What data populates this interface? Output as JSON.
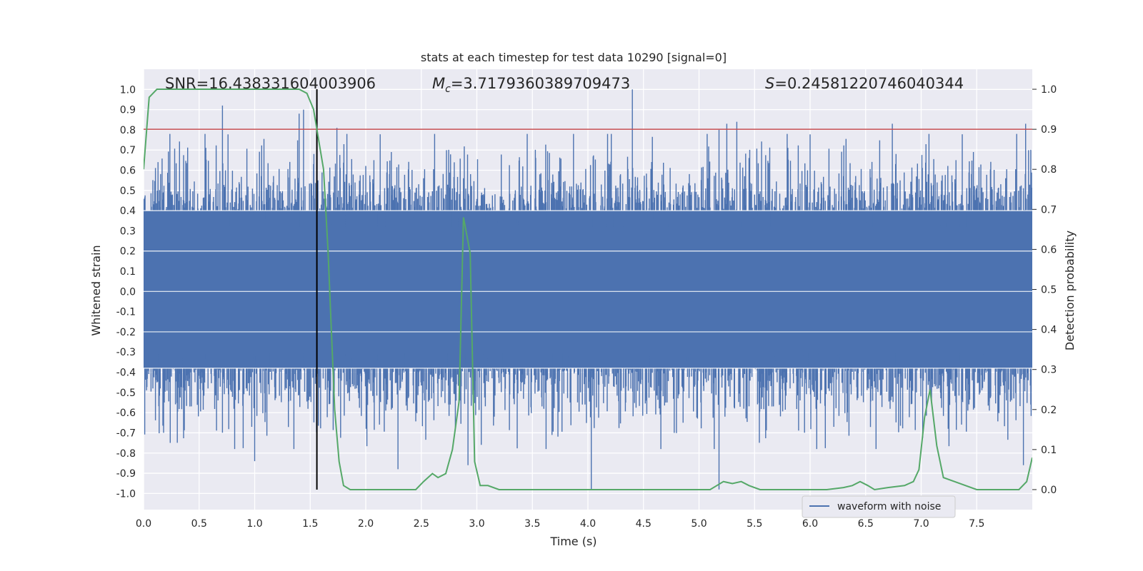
{
  "chart_data": {
    "type": "line",
    "title": "stats at each timestep for test data 10290 [signal=0]",
    "xlabel": "Time (s)",
    "ylabel": "Whitened strain",
    "ylabel_right": "Detection probability",
    "xlim": [
      0.0,
      8.0
    ],
    "ylim": [
      -1.08,
      1.1
    ],
    "ylim_right": [
      -0.05,
      1.05
    ],
    "x_ticks": [
      "0.0",
      "0.5",
      "1.0",
      "1.5",
      "2.0",
      "2.5",
      "3.0",
      "3.5",
      "4.0",
      "4.5",
      "5.0",
      "5.5",
      "6.0",
      "6.5",
      "7.0",
      "7.5"
    ],
    "y_ticks": [
      "-1.0",
      "-0.9",
      "-0.8",
      "-0.7",
      "-0.6",
      "-0.5",
      "-0.4",
      "-0.3",
      "-0.2",
      "-0.1",
      "0.0",
      "0.1",
      "0.2",
      "0.3",
      "0.4",
      "0.5",
      "0.6",
      "0.7",
      "0.8",
      "0.9",
      "1.0"
    ],
    "y_ticks_right": [
      "0.0",
      "0.1",
      "0.2",
      "0.3",
      "0.4",
      "0.5",
      "0.6",
      "0.7",
      "0.8",
      "0.9",
      "1.0"
    ],
    "annotations": {
      "snr": "SNR=16.438331604003906",
      "mc_symbol": "M",
      "mc_sub": "c",
      "mc_value": "=3.7179360389709473",
      "s_symbol": "S",
      "s_value": "=0.24581220746040344"
    },
    "threshold_line": {
      "right_value": 0.9,
      "color": "#c44e52"
    },
    "marker_line": {
      "x": 1.56,
      "color": "#000000"
    },
    "legend": {
      "label": "waveform with noise",
      "location": "lower-right"
    },
    "series": [
      {
        "name": "waveform with noise",
        "axis": "left",
        "color": "#4c72b0",
        "description": "whitened noisy strain, dense amplitude envelope",
        "envelope_band": [
          -0.38,
          0.4
        ],
        "spike_peaks": [
          {
            "x": 0.71,
            "y": 0.92
          },
          {
            "x": 1.4,
            "y": 0.88
          },
          {
            "x": 1.44,
            "y": 0.9
          },
          {
            "x": 1.74,
            "y": 0.81
          },
          {
            "x": 4.4,
            "y": 1.0
          },
          {
            "x": 5.18,
            "y": 0.8
          },
          {
            "x": 5.25,
            "y": 0.83
          },
          {
            "x": 5.34,
            "y": 0.84
          },
          {
            "x": 6.74,
            "y": 0.83
          },
          {
            "x": 7.94,
            "y": 0.83
          },
          {
            "x": 4.03,
            "y": -0.98
          },
          {
            "x": 5.18,
            "y": -0.98
          },
          {
            "x": 1.0,
            "y": -0.84
          },
          {
            "x": 2.92,
            "y": -0.86
          },
          {
            "x": 2.29,
            "y": -0.88
          },
          {
            "x": 7.92,
            "y": -0.86
          }
        ]
      },
      {
        "name": "detection probability",
        "axis": "right",
        "color": "#55a868",
        "x": [
          0.0,
          0.05,
          0.12,
          0.3,
          0.6,
          0.9,
          1.2,
          1.4,
          1.47,
          1.53,
          1.62,
          1.66,
          1.72,
          1.76,
          1.8,
          1.86,
          1.95,
          2.05,
          2.15,
          2.3,
          2.4,
          2.45,
          2.52,
          2.6,
          2.65,
          2.72,
          2.78,
          2.84,
          2.88,
          2.94,
          2.98,
          3.03,
          3.1,
          3.2,
          3.35,
          3.6,
          4.0,
          4.5,
          5.0,
          5.1,
          5.16,
          5.22,
          5.3,
          5.38,
          5.45,
          5.55,
          5.7,
          5.8,
          5.9,
          6.0,
          6.15,
          6.3,
          6.38,
          6.45,
          6.52,
          6.58,
          6.7,
          6.85,
          6.93,
          6.98,
          7.03,
          7.08,
          7.14,
          7.2,
          7.3,
          7.5,
          7.7,
          7.88,
          7.95,
          8.0
        ],
        "values": [
          0.8,
          0.98,
          1.0,
          1.0,
          1.0,
          1.0,
          1.0,
          1.0,
          0.99,
          0.95,
          0.8,
          0.6,
          0.2,
          0.07,
          0.01,
          0.0,
          0.0,
          0.0,
          0.0,
          0.0,
          0.0,
          0.0,
          0.02,
          0.04,
          0.03,
          0.04,
          0.1,
          0.22,
          0.68,
          0.59,
          0.07,
          0.01,
          0.01,
          0.0,
          0.0,
          0.0,
          0.0,
          0.0,
          0.0,
          0.0,
          0.01,
          0.02,
          0.015,
          0.02,
          0.01,
          0.0,
          0.0,
          0.0,
          0.0,
          0.0,
          0.0,
          0.005,
          0.01,
          0.02,
          0.01,
          0.0,
          0.005,
          0.01,
          0.02,
          0.05,
          0.18,
          0.25,
          0.11,
          0.03,
          0.02,
          0.0,
          0.0,
          0.0,
          0.02,
          0.08
        ]
      }
    ]
  }
}
